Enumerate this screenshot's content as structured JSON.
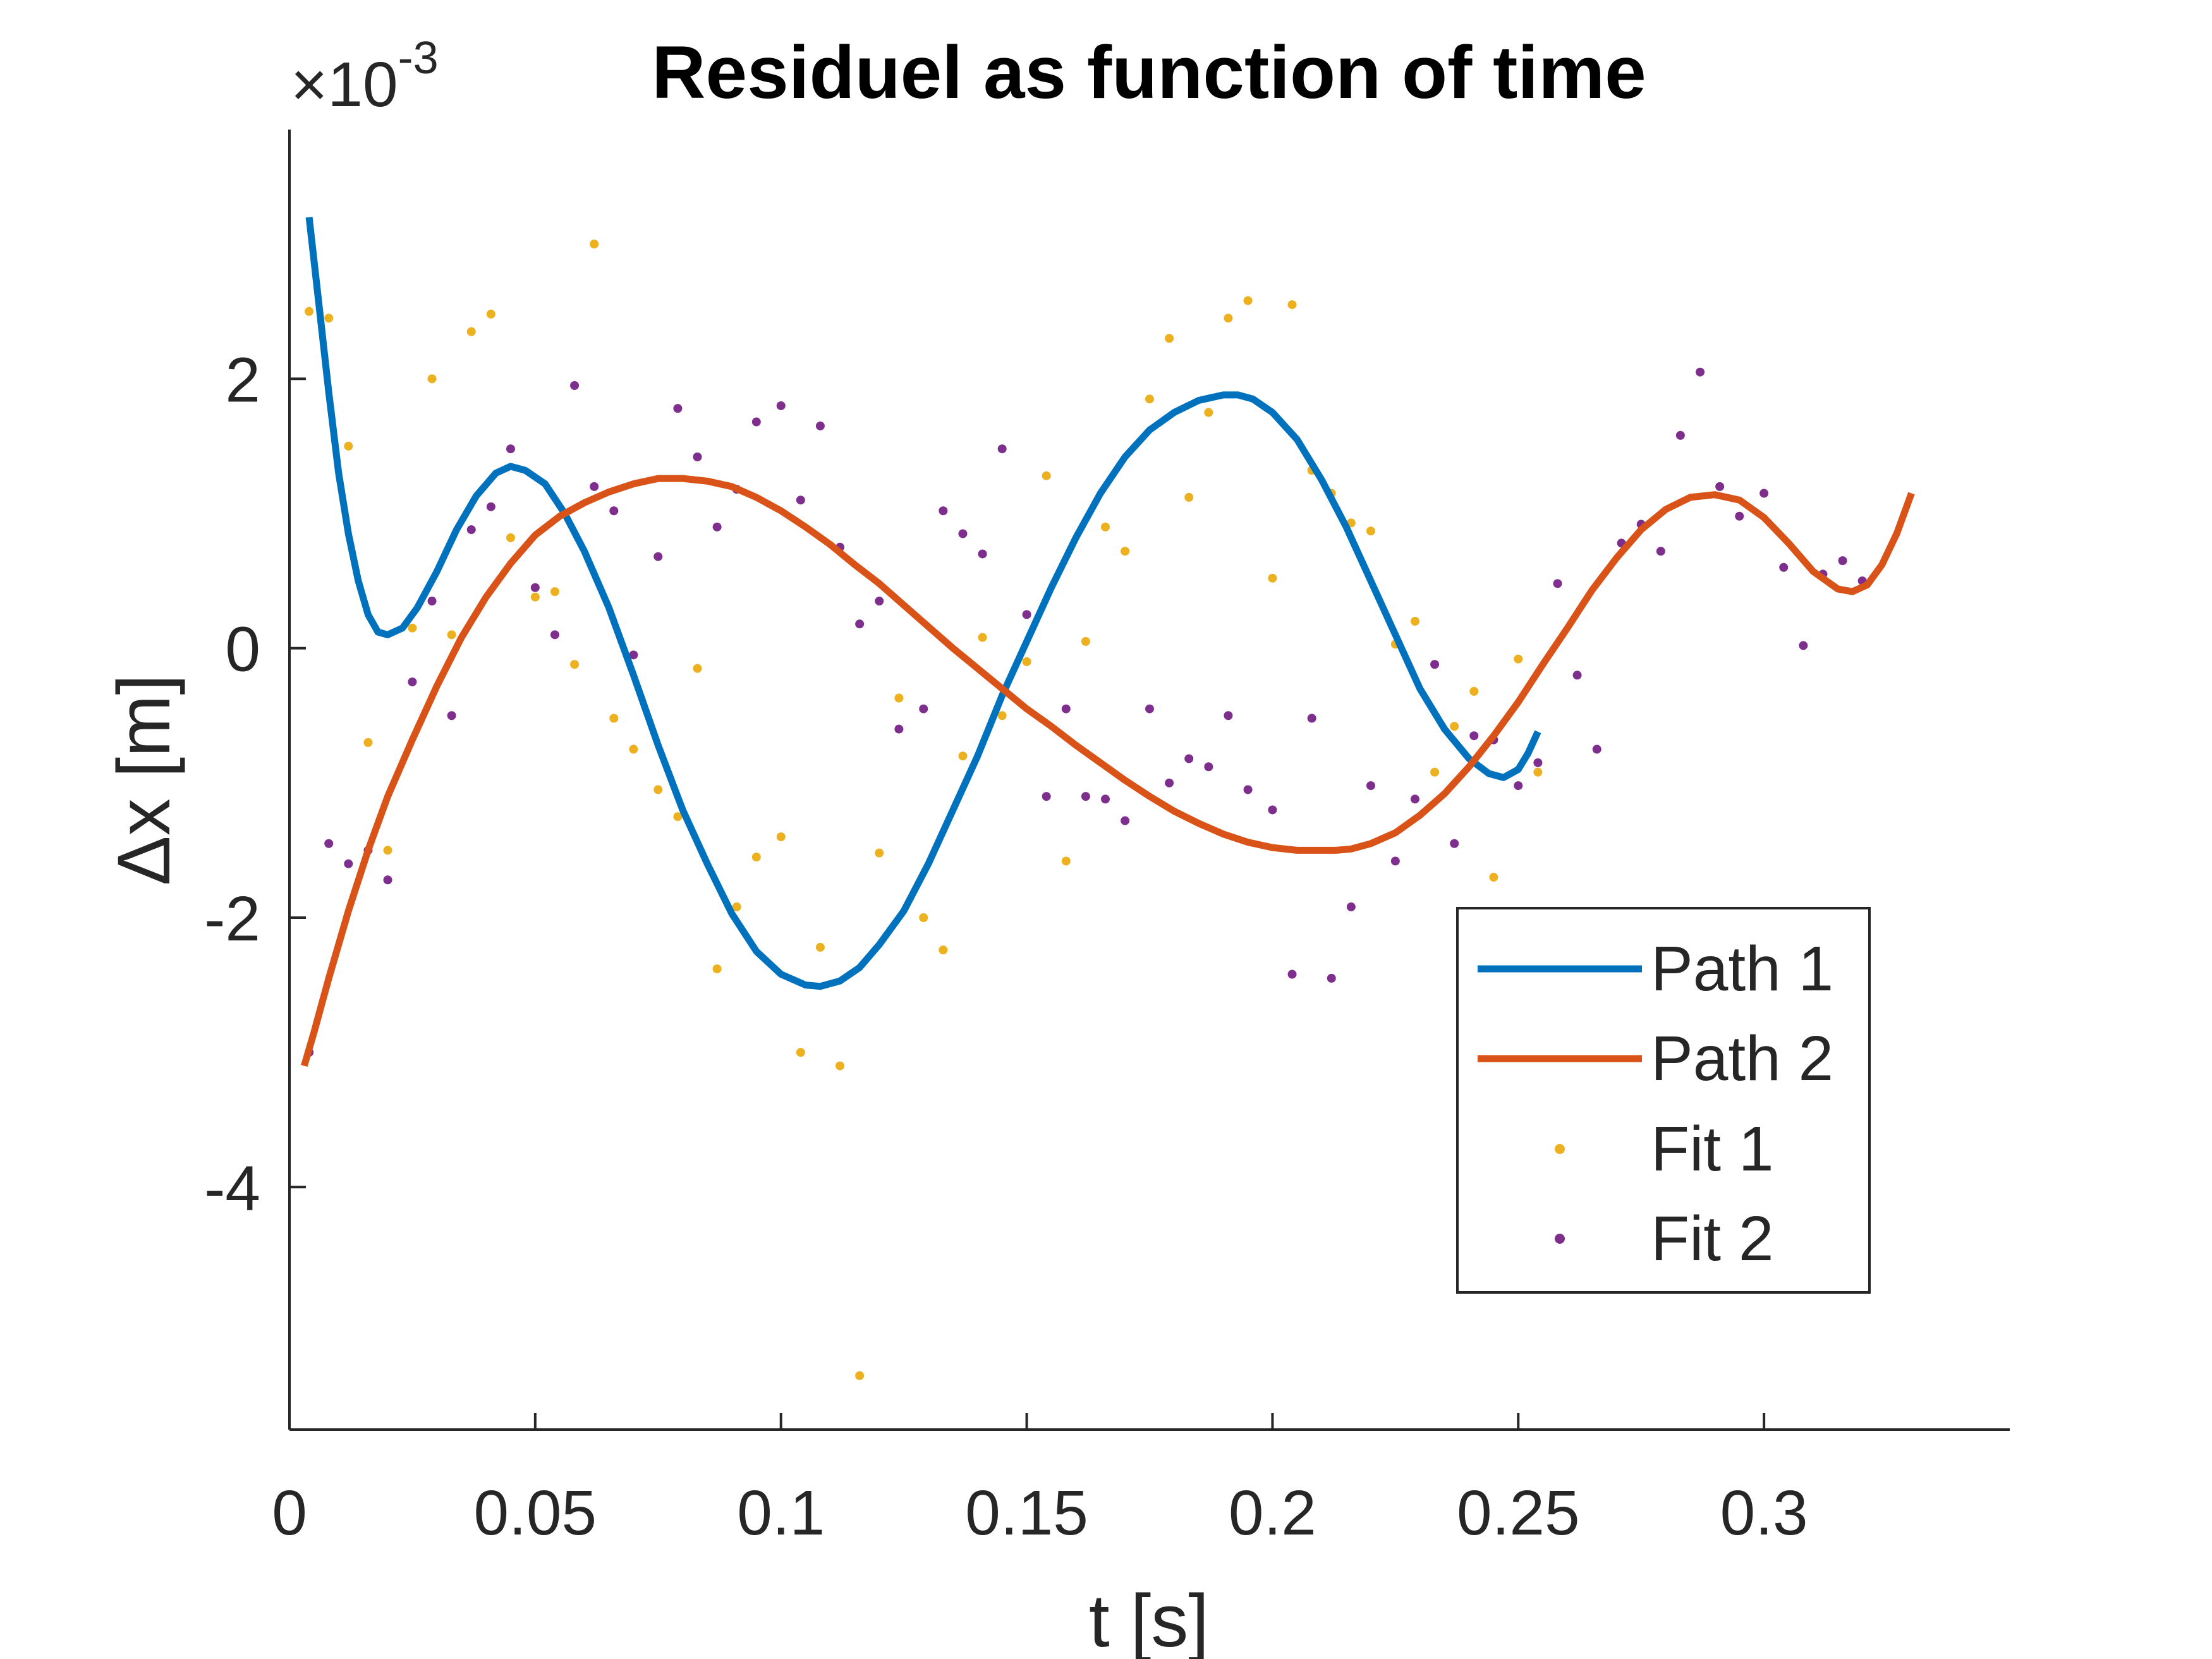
{
  "chart_data": {
    "type": "line",
    "title": "Residuel as function of time",
    "xlabel": "t [s]",
    "ylabel": "Δx [m]",
    "exponent_label": "×10",
    "exponent_power": "-3",
    "xlim": [
      0,
      0.35
    ],
    "ylim": [
      -5.8,
      3.85
    ],
    "y_scale": 0.001,
    "grid": false,
    "legend_position": "bottom-right",
    "x_ticks": [
      {
        "value": 0,
        "label": "0"
      },
      {
        "value": 0.05,
        "label": "0.05"
      },
      {
        "value": 0.1,
        "label": "0.1"
      },
      {
        "value": 0.15,
        "label": "0.15"
      },
      {
        "value": 0.2,
        "label": "0.2"
      },
      {
        "value": 0.25,
        "label": "0.25"
      },
      {
        "value": 0.3,
        "label": "0.3"
      }
    ],
    "y_ticks": [
      {
        "value": -4,
        "label": "-4"
      },
      {
        "value": -2,
        "label": "-2"
      },
      {
        "value": 0,
        "label": "0"
      },
      {
        "value": 2,
        "label": "2"
      }
    ],
    "series": [
      {
        "name": "Path 1",
        "kind": "line",
        "color": "#0072BD",
        "points": [
          [
            0.004,
            3.2
          ],
          [
            0.006,
            2.55
          ],
          [
            0.008,
            1.9
          ],
          [
            0.01,
            1.3
          ],
          [
            0.012,
            0.85
          ],
          [
            0.014,
            0.5
          ],
          [
            0.016,
            0.25
          ],
          [
            0.018,
            0.12
          ],
          [
            0.02,
            0.1
          ],
          [
            0.023,
            0.15
          ],
          [
            0.026,
            0.3
          ],
          [
            0.03,
            0.57
          ],
          [
            0.034,
            0.88
          ],
          [
            0.038,
            1.13
          ],
          [
            0.042,
            1.3
          ],
          [
            0.045,
            1.35
          ],
          [
            0.048,
            1.32
          ],
          [
            0.052,
            1.22
          ],
          [
            0.056,
            1.0
          ],
          [
            0.06,
            0.72
          ],
          [
            0.065,
            0.3
          ],
          [
            0.07,
            -0.2
          ],
          [
            0.075,
            -0.72
          ],
          [
            0.08,
            -1.2
          ],
          [
            0.085,
            -1.6
          ],
          [
            0.09,
            -1.97
          ],
          [
            0.095,
            -2.25
          ],
          [
            0.1,
            -2.42
          ],
          [
            0.105,
            -2.5
          ],
          [
            0.108,
            -2.51
          ],
          [
            0.112,
            -2.47
          ],
          [
            0.116,
            -2.37
          ],
          [
            0.12,
            -2.2
          ],
          [
            0.125,
            -1.95
          ],
          [
            0.13,
            -1.6
          ],
          [
            0.135,
            -1.2
          ],
          [
            0.14,
            -0.8
          ],
          [
            0.145,
            -0.35
          ],
          [
            0.15,
            0.05
          ],
          [
            0.155,
            0.45
          ],
          [
            0.16,
            0.82
          ],
          [
            0.165,
            1.15
          ],
          [
            0.17,
            1.42
          ],
          [
            0.175,
            1.62
          ],
          [
            0.18,
            1.75
          ],
          [
            0.185,
            1.84
          ],
          [
            0.19,
            1.88
          ],
          [
            0.193,
            1.88
          ],
          [
            0.196,
            1.85
          ],
          [
            0.2,
            1.75
          ],
          [
            0.205,
            1.55
          ],
          [
            0.21,
            1.25
          ],
          [
            0.215,
            0.9
          ],
          [
            0.22,
            0.5
          ],
          [
            0.225,
            0.1
          ],
          [
            0.23,
            -0.3
          ],
          [
            0.235,
            -0.6
          ],
          [
            0.24,
            -0.82
          ],
          [
            0.244,
            -0.93
          ],
          [
            0.247,
            -0.96
          ],
          [
            0.25,
            -0.9
          ],
          [
            0.252,
            -0.78
          ],
          [
            0.254,
            -0.62
          ]
        ]
      },
      {
        "name": "Path 2",
        "kind": "line",
        "color": "#D95319",
        "points": [
          [
            0.003,
            -3.1
          ],
          [
            0.005,
            -2.85
          ],
          [
            0.008,
            -2.45
          ],
          [
            0.012,
            -1.95
          ],
          [
            0.016,
            -1.5
          ],
          [
            0.02,
            -1.1
          ],
          [
            0.025,
            -0.68
          ],
          [
            0.03,
            -0.28
          ],
          [
            0.035,
            0.08
          ],
          [
            0.04,
            0.38
          ],
          [
            0.045,
            0.63
          ],
          [
            0.05,
            0.84
          ],
          [
            0.055,
            0.98
          ],
          [
            0.06,
            1.08
          ],
          [
            0.065,
            1.16
          ],
          [
            0.07,
            1.22
          ],
          [
            0.075,
            1.26
          ],
          [
            0.08,
            1.26
          ],
          [
            0.085,
            1.24
          ],
          [
            0.09,
            1.2
          ],
          [
            0.095,
            1.12
          ],
          [
            0.1,
            1.02
          ],
          [
            0.105,
            0.9
          ],
          [
            0.11,
            0.77
          ],
          [
            0.115,
            0.62
          ],
          [
            0.12,
            0.48
          ],
          [
            0.125,
            0.32
          ],
          [
            0.13,
            0.16
          ],
          [
            0.135,
            0.0
          ],
          [
            0.14,
            -0.15
          ],
          [
            0.145,
            -0.3
          ],
          [
            0.15,
            -0.45
          ],
          [
            0.155,
            -0.58
          ],
          [
            0.16,
            -0.72
          ],
          [
            0.165,
            -0.85
          ],
          [
            0.17,
            -0.98
          ],
          [
            0.175,
            -1.1
          ],
          [
            0.18,
            -1.21
          ],
          [
            0.185,
            -1.3
          ],
          [
            0.19,
            -1.38
          ],
          [
            0.195,
            -1.44
          ],
          [
            0.2,
            -1.48
          ],
          [
            0.205,
            -1.5
          ],
          [
            0.21,
            -1.5
          ],
          [
            0.213,
            -1.5
          ],
          [
            0.216,
            -1.49
          ],
          [
            0.22,
            -1.45
          ],
          [
            0.225,
            -1.37
          ],
          [
            0.23,
            -1.24
          ],
          [
            0.235,
            -1.08
          ],
          [
            0.24,
            -0.88
          ],
          [
            0.245,
            -0.65
          ],
          [
            0.25,
            -0.4
          ],
          [
            0.255,
            -0.12
          ],
          [
            0.26,
            0.15
          ],
          [
            0.265,
            0.43
          ],
          [
            0.27,
            0.67
          ],
          [
            0.275,
            0.88
          ],
          [
            0.28,
            1.03
          ],
          [
            0.285,
            1.12
          ],
          [
            0.29,
            1.14
          ],
          [
            0.295,
            1.1
          ],
          [
            0.3,
            0.97
          ],
          [
            0.305,
            0.78
          ],
          [
            0.31,
            0.57
          ],
          [
            0.315,
            0.44
          ],
          [
            0.318,
            0.42
          ],
          [
            0.321,
            0.47
          ],
          [
            0.324,
            0.62
          ],
          [
            0.327,
            0.85
          ],
          [
            0.33,
            1.15
          ]
        ]
      },
      {
        "name": "Fit 1",
        "kind": "scatter",
        "color": "#EDB120",
        "points": [
          [
            0.004,
            2.5
          ],
          [
            0.008,
            2.45
          ],
          [
            0.012,
            1.5
          ],
          [
            0.016,
            -0.7
          ],
          [
            0.02,
            -1.5
          ],
          [
            0.025,
            0.15
          ],
          [
            0.029,
            2.0
          ],
          [
            0.033,
            0.1
          ],
          [
            0.037,
            2.35
          ],
          [
            0.041,
            2.48
          ],
          [
            0.045,
            0.82
          ],
          [
            0.05,
            0.38
          ],
          [
            0.054,
            0.42
          ],
          [
            0.058,
            -0.12
          ],
          [
            0.062,
            3.0
          ],
          [
            0.066,
            -0.52
          ],
          [
            0.07,
            -0.75
          ],
          [
            0.075,
            -1.05
          ],
          [
            0.079,
            -1.25
          ],
          [
            0.083,
            -0.15
          ],
          [
            0.087,
            -2.38
          ],
          [
            0.091,
            -1.92
          ],
          [
            0.095,
            -1.55
          ],
          [
            0.1,
            -1.4
          ],
          [
            0.104,
            -3.0
          ],
          [
            0.108,
            -2.22
          ],
          [
            0.112,
            -3.1
          ],
          [
            0.116,
            -5.4
          ],
          [
            0.12,
            -1.52
          ],
          [
            0.124,
            -0.37
          ],
          [
            0.129,
            -2.0
          ],
          [
            0.133,
            -2.24
          ],
          [
            0.137,
            -0.8
          ],
          [
            0.141,
            0.08
          ],
          [
            0.145,
            -0.5
          ],
          [
            0.15,
            -0.1
          ],
          [
            0.154,
            1.28
          ],
          [
            0.158,
            -1.58
          ],
          [
            0.162,
            0.05
          ],
          [
            0.166,
            0.9
          ],
          [
            0.17,
            0.72
          ],
          [
            0.175,
            1.85
          ],
          [
            0.179,
            2.3
          ],
          [
            0.183,
            1.12
          ],
          [
            0.187,
            1.75
          ],
          [
            0.191,
            2.45
          ],
          [
            0.195,
            2.58
          ],
          [
            0.2,
            0.52
          ],
          [
            0.204,
            2.55
          ],
          [
            0.208,
            1.32
          ],
          [
            0.212,
            1.15
          ],
          [
            0.216,
            0.93
          ],
          [
            0.22,
            0.87
          ],
          [
            0.225,
            0.03
          ],
          [
            0.229,
            0.2
          ],
          [
            0.233,
            -0.92
          ],
          [
            0.237,
            -0.58
          ],
          [
            0.241,
            -0.32
          ],
          [
            0.245,
            -1.7
          ],
          [
            0.25,
            -0.08
          ],
          [
            0.254,
            -0.92
          ]
        ]
      },
      {
        "name": "Fit 2",
        "kind": "scatter",
        "color": "#7E2F8E",
        "points": [
          [
            0.004,
            -3.0
          ],
          [
            0.008,
            -1.45
          ],
          [
            0.012,
            -1.6
          ],
          [
            0.016,
            -1.5
          ],
          [
            0.02,
            -1.72
          ],
          [
            0.025,
            -0.25
          ],
          [
            0.029,
            0.35
          ],
          [
            0.033,
            -0.5
          ],
          [
            0.037,
            0.88
          ],
          [
            0.041,
            1.05
          ],
          [
            0.045,
            1.48
          ],
          [
            0.05,
            0.45
          ],
          [
            0.054,
            0.1
          ],
          [
            0.058,
            1.95
          ],
          [
            0.062,
            1.2
          ],
          [
            0.066,
            1.02
          ],
          [
            0.07,
            -0.05
          ],
          [
            0.075,
            0.68
          ],
          [
            0.079,
            1.78
          ],
          [
            0.083,
            1.42
          ],
          [
            0.087,
            0.9
          ],
          [
            0.091,
            1.18
          ],
          [
            0.095,
            1.68
          ],
          [
            0.1,
            1.8
          ],
          [
            0.104,
            1.1
          ],
          [
            0.108,
            1.65
          ],
          [
            0.112,
            0.75
          ],
          [
            0.116,
            0.18
          ],
          [
            0.12,
            0.35
          ],
          [
            0.124,
            -0.6
          ],
          [
            0.129,
            -0.45
          ],
          [
            0.133,
            1.02
          ],
          [
            0.137,
            0.85
          ],
          [
            0.141,
            0.7
          ],
          [
            0.145,
            1.48
          ],
          [
            0.15,
            0.25
          ],
          [
            0.154,
            -1.1
          ],
          [
            0.158,
            -0.45
          ],
          [
            0.162,
            -1.1
          ],
          [
            0.166,
            -1.12
          ],
          [
            0.17,
            -1.28
          ],
          [
            0.175,
            -0.45
          ],
          [
            0.179,
            -1.0
          ],
          [
            0.183,
            -0.82
          ],
          [
            0.187,
            -0.88
          ],
          [
            0.191,
            -0.5
          ],
          [
            0.195,
            -1.05
          ],
          [
            0.2,
            -1.2
          ],
          [
            0.204,
            -2.42
          ],
          [
            0.208,
            -0.52
          ],
          [
            0.212,
            -2.45
          ],
          [
            0.216,
            -1.92
          ],
          [
            0.22,
            -1.02
          ],
          [
            0.225,
            -1.58
          ],
          [
            0.229,
            -1.12
          ],
          [
            0.233,
            -0.12
          ],
          [
            0.237,
            -1.45
          ],
          [
            0.241,
            -0.65
          ],
          [
            0.245,
            -0.68
          ],
          [
            0.25,
            -1.02
          ],
          [
            0.254,
            -0.85
          ],
          [
            0.258,
            0.48
          ],
          [
            0.262,
            -0.2
          ],
          [
            0.266,
            -0.75
          ],
          [
            0.271,
            0.78
          ],
          [
            0.275,
            0.92
          ],
          [
            0.279,
            0.72
          ],
          [
            0.283,
            1.58
          ],
          [
            0.287,
            2.05
          ],
          [
            0.291,
            1.2
          ],
          [
            0.295,
            0.98
          ],
          [
            0.3,
            1.15
          ],
          [
            0.304,
            0.6
          ],
          [
            0.308,
            0.02
          ],
          [
            0.312,
            0.55
          ],
          [
            0.316,
            0.65
          ],
          [
            0.32,
            0.5
          ]
        ]
      }
    ]
  }
}
